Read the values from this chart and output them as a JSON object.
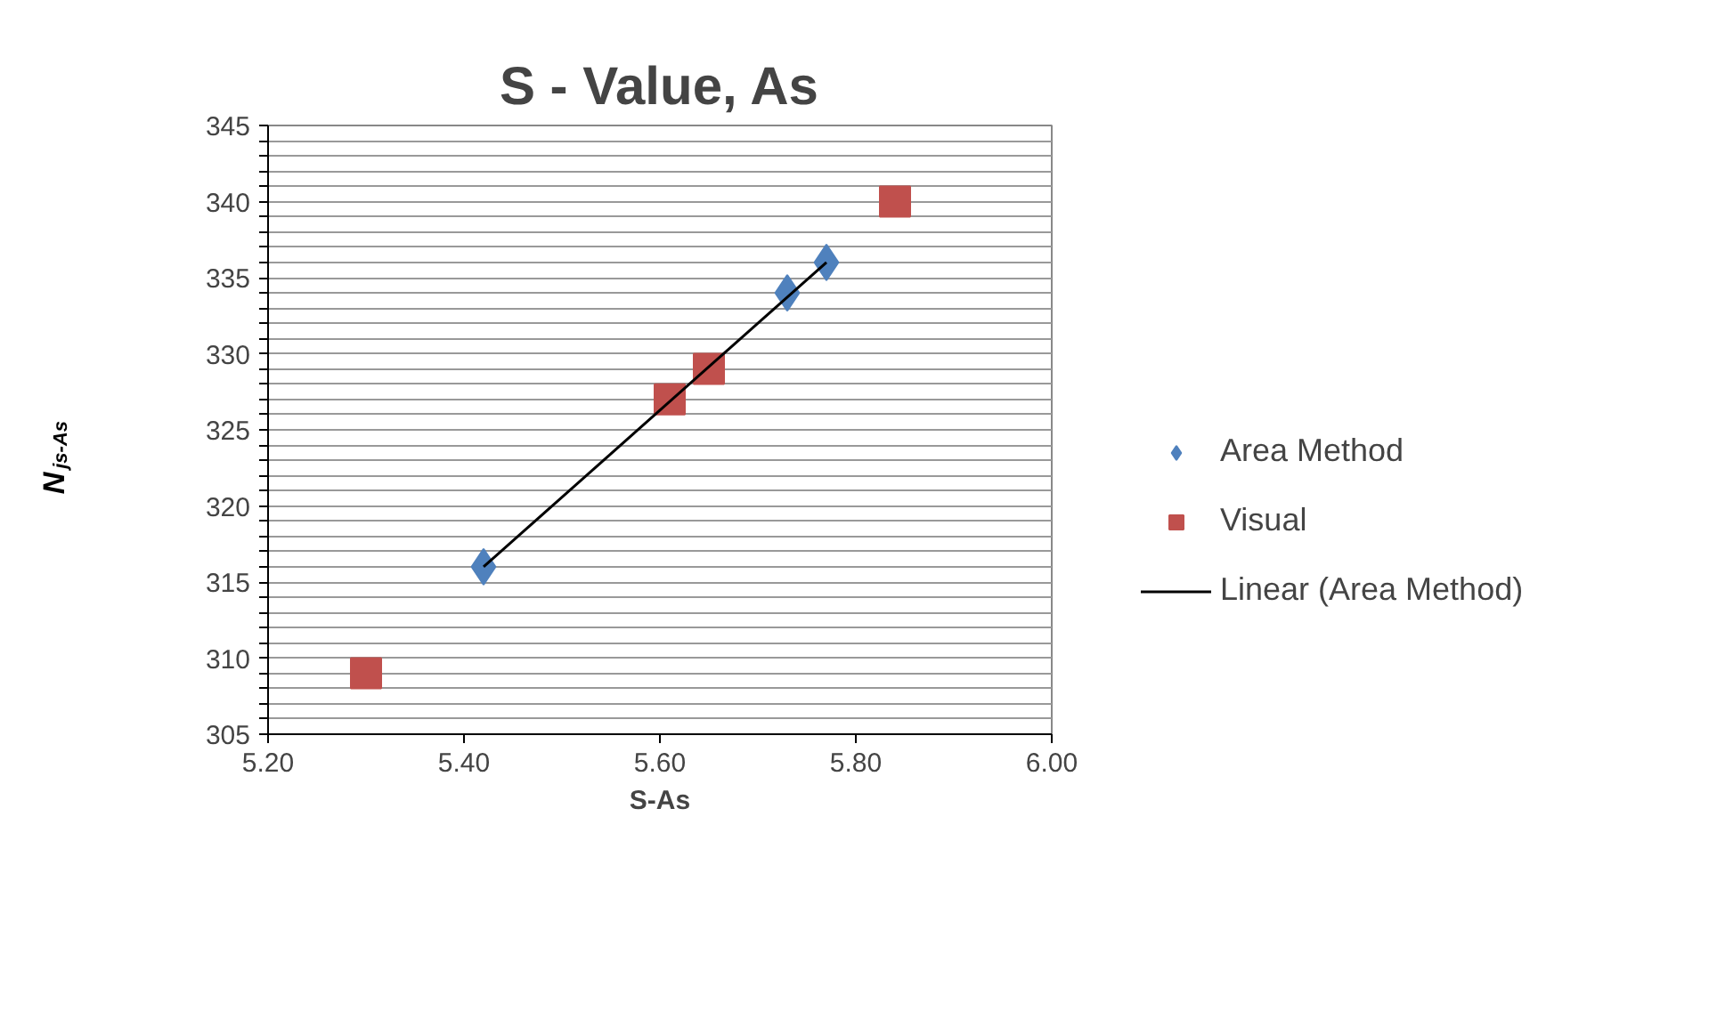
{
  "chart_data": {
    "type": "scatter",
    "title": "S - Value, As",
    "xlabel": "S-As",
    "ylabel": "N$_{js-As}$",
    "xlim": [
      5.2,
      6.0
    ],
    "xticks": [
      {
        "value": 5.2,
        "label": "5.20"
      },
      {
        "value": 5.4,
        "label": "5.40"
      },
      {
        "value": 5.6,
        "label": "5.60"
      },
      {
        "value": 5.8,
        "label": "5.80"
      },
      {
        "value": 6.0,
        "label": "6.00"
      }
    ],
    "ylim": [
      305,
      345
    ],
    "yticks": [
      305,
      {
        "value": 306,
        "label": null
      },
      {
        "value": 307,
        "label": null
      },
      {
        "value": 308,
        "label": null
      },
      {
        "value": 309,
        "label": null
      },
      310,
      {
        "value": 311,
        "label": null
      },
      {
        "value": 312,
        "label": null
      },
      {
        "value": 313,
        "label": null
      },
      {
        "value": 314,
        "label": null
      },
      315,
      {
        "value": 316,
        "label": null
      },
      {
        "value": 317,
        "label": null
      },
      {
        "value": 318,
        "label": null
      },
      {
        "value": 319,
        "label": null
      },
      320,
      {
        "value": 321,
        "label": null
      },
      {
        "value": 322,
        "label": null
      },
      {
        "value": 323,
        "label": null
      },
      {
        "value": 324,
        "label": null
      },
      325,
      {
        "value": 326,
        "label": null
      },
      {
        "value": 327,
        "label": null
      },
      {
        "value": 328,
        "label": null
      },
      {
        "value": 329,
        "label": null
      },
      330,
      {
        "value": 331,
        "label": null
      },
      {
        "value": 332,
        "label": null
      },
      {
        "value": 333,
        "label": null
      },
      {
        "value": 334,
        "label": null
      },
      335,
      {
        "value": 336,
        "label": null
      },
      {
        "value": 337,
        "label": null
      },
      {
        "value": 338,
        "label": null
      },
      {
        "value": 339,
        "label": null
      },
      340,
      {
        "value": 341,
        "label": null
      },
      {
        "value": 342,
        "label": null
      },
      {
        "value": 343,
        "label": null
      },
      {
        "value": 344,
        "label": null
      },
      345
    ],
    "grid": "y",
    "legend": "right",
    "series": [
      {
        "name": "Area Method",
        "type": "scatter",
        "marker": "diamond",
        "color": "#4f81bd",
        "x": [
          5.42,
          5.73,
          5.77
        ],
        "values": [
          316,
          334,
          336
        ]
      },
      {
        "name": "Visual",
        "type": "scatter",
        "marker": "square",
        "color": "#c0504d",
        "x": [
          5.3,
          5.61,
          5.65,
          5.84
        ],
        "values": [
          309,
          327,
          329,
          340
        ]
      },
      {
        "name": "Linear (Area Method)",
        "type": "line",
        "color": "#000000",
        "x": [
          5.42,
          5.77
        ],
        "values": [
          316,
          336
        ]
      }
    ]
  }
}
